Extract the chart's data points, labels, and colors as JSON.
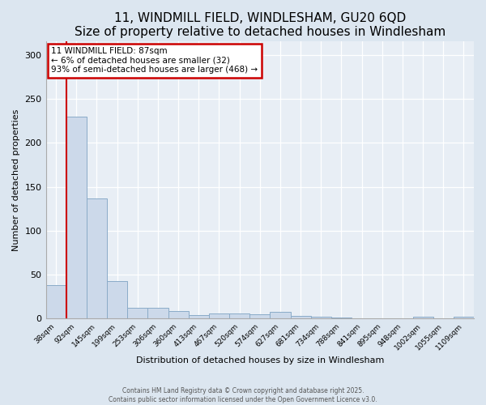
{
  "title1": "11, WINDMILL FIELD, WINDLESHAM, GU20 6QD",
  "title2": "Size of property relative to detached houses in Windlesham",
  "xlabel": "Distribution of detached houses by size in Windlesham",
  "ylabel": "Number of detached properties",
  "categories": [
    "38sqm",
    "92sqm",
    "145sqm",
    "199sqm",
    "253sqm",
    "306sqm",
    "360sqm",
    "413sqm",
    "467sqm",
    "520sqm",
    "574sqm",
    "627sqm",
    "681sqm",
    "734sqm",
    "788sqm",
    "841sqm",
    "895sqm",
    "948sqm",
    "1002sqm",
    "1055sqm",
    "1109sqm"
  ],
  "values": [
    38,
    230,
    137,
    43,
    12,
    12,
    9,
    4,
    6,
    6,
    5,
    8,
    3,
    2,
    1,
    0,
    0,
    0,
    2,
    0,
    2
  ],
  "bar_color": "#ccd9ea",
  "bar_edge_color": "#8aabc8",
  "highlight_color": "#cc0000",
  "annotation_text": "11 WINDMILL FIELD: 87sqm\n← 6% of detached houses are smaller (32)\n93% of semi-detached houses are larger (468) →",
  "annotation_box_color": "#ffffff",
  "annotation_box_edge": "#cc0000",
  "ylim": [
    0,
    315
  ],
  "yticks": [
    0,
    50,
    100,
    150,
    200,
    250,
    300
  ],
  "footer1": "Contains HM Land Registry data © Crown copyright and database right 2025.",
  "footer2": "Contains public sector information licensed under the Open Government Licence v3.0.",
  "bg_color": "#dce6f0",
  "plot_bg_color": "#e8eef5",
  "grid_color": "#ffffff",
  "title1_fontsize": 11,
  "title2_fontsize": 9
}
